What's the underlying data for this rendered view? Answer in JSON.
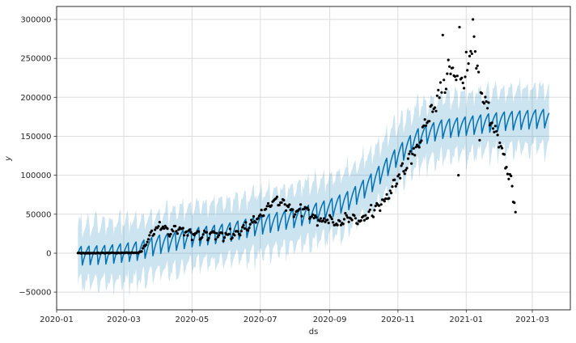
{
  "chart_data": {
    "type": "line",
    "title": "",
    "xlabel": "ds",
    "ylabel": "y",
    "grid": true,
    "legend": "none",
    "x_epoch": "2020-01-01",
    "xlim_days": [
      0,
      459
    ],
    "ylim": [
      -72700,
      316600
    ],
    "x_ticks": [
      {
        "label": "2020-01",
        "day": 0
      },
      {
        "label": "2020-03",
        "day": 60
      },
      {
        "label": "2020-05",
        "day": 121
      },
      {
        "label": "2020-07",
        "day": 182
      },
      {
        "label": "2020-09",
        "day": 244
      },
      {
        "label": "2020-11",
        "day": 305
      },
      {
        "label": "2021-01",
        "day": 366
      },
      {
        "label": "2021-03",
        "day": 425
      }
    ],
    "y_ticks": [
      {
        "label": "−50000",
        "value": -50000
      },
      {
        "label": "0",
        "value": 0
      },
      {
        "label": "50000",
        "value": 50000
      },
      {
        "label": "100000",
        "value": 100000
      },
      {
        "label": "150000",
        "value": 150000
      },
      {
        "label": "200000",
        "value": 200000
      },
      {
        "label": "250000",
        "value": 250000
      },
      {
        "label": "300000",
        "value": 300000
      }
    ],
    "colors": {
      "line": "#0072B2",
      "band": "#0072B2",
      "points": "#000000",
      "grid": "#dddddd",
      "spine": "#2b2b2b",
      "text": "#262626",
      "background": "#ffffff"
    },
    "series": [
      {
        "key": "observed",
        "name": "observed data points",
        "type": "scatter",
        "start_day": 19,
        "end_day": 410,
        "marker_radius": 1.6,
        "weekly_factor": 0.35,
        "keypoints": [
          [
            19,
            0
          ],
          [
            73,
            500
          ],
          [
            76,
            3000
          ],
          [
            79,
            10000
          ],
          [
            83,
            20000
          ],
          [
            88,
            31000
          ],
          [
            93,
            34000
          ],
          [
            98,
            30000
          ],
          [
            102,
            26000
          ],
          [
            107,
            31000
          ],
          [
            112,
            28000
          ],
          [
            117,
            25000
          ],
          [
            124,
            23000
          ],
          [
            132,
            24000
          ],
          [
            140,
            26000
          ],
          [
            148,
            23000
          ],
          [
            156,
            24000
          ],
          [
            163,
            27000
          ],
          [
            170,
            33000
          ],
          [
            177,
            42000
          ],
          [
            184,
            51000
          ],
          [
            191,
            62000
          ],
          [
            197,
            66000
          ],
          [
            203,
            63000
          ],
          [
            209,
            57000
          ],
          [
            215,
            53000
          ],
          [
            220,
            56000
          ],
          [
            226,
            50000
          ],
          [
            232,
            43000
          ],
          [
            239,
            40000
          ],
          [
            246,
            43000
          ],
          [
            251,
            38000
          ],
          [
            257,
            44000
          ],
          [
            263,
            46000
          ],
          [
            269,
            42000
          ],
          [
            275,
            47000
          ],
          [
            281,
            52000
          ],
          [
            287,
            58000
          ],
          [
            293,
            68000
          ],
          [
            299,
            80000
          ],
          [
            305,
            95000
          ],
          [
            311,
            110000
          ],
          [
            317,
            122000
          ],
          [
            323,
            140000
          ],
          [
            329,
            160000
          ],
          [
            335,
            185000
          ],
          [
            341,
            200000
          ],
          [
            347,
            215000
          ],
          [
            352,
            235000
          ],
          [
            358,
            225000
          ],
          [
            363,
            215000
          ],
          [
            368,
            240000
          ],
          [
            373,
            258000
          ],
          [
            377,
            225000
          ],
          [
            381,
            200000
          ],
          [
            385,
            185000
          ],
          [
            389,
            170000
          ],
          [
            393,
            152000
          ],
          [
            398,
            130000
          ],
          [
            402,
            110000
          ],
          [
            406,
            90000
          ],
          [
            410,
            55000
          ]
        ],
        "outliers": [
          [
            345,
            280000
          ],
          [
            350,
            248000
          ],
          [
            359,
            100000
          ],
          [
            360,
            290000
          ],
          [
            366,
            258000
          ],
          [
            371,
            256000
          ],
          [
            372,
            300000
          ],
          [
            373,
            278000
          ],
          [
            378,
            145000
          ]
        ],
        "noise_scale_keypoints": [
          [
            19,
            300
          ],
          [
            73,
            500
          ],
          [
            80,
            2000
          ],
          [
            91,
            3000
          ],
          [
            244,
            4500
          ],
          [
            300,
            6500
          ],
          [
            330,
            9000
          ],
          [
            340,
            13000
          ],
          [
            390,
            12000
          ],
          [
            397,
            7000
          ],
          [
            410,
            6000
          ]
        ]
      },
      {
        "key": "forecast",
        "name": "forecast yhat",
        "type": "line",
        "start_day": 19,
        "end_day": 440,
        "line_width": 1.5,
        "weekly_pattern": [
          9000,
          11000,
          -13000,
          -7000,
          -2000,
          2500,
          6000
        ],
        "trend_keypoints": [
          [
            19,
            -2500
          ],
          [
            45,
            -1000
          ],
          [
            60,
            1500
          ],
          [
            74,
            4000
          ],
          [
            91,
            12000
          ],
          [
            105,
            16000
          ],
          [
            121,
            21000
          ],
          [
            152,
            27000
          ],
          [
            182,
            37000
          ],
          [
            213,
            46000
          ],
          [
            244,
            58000
          ],
          [
            263,
            70000
          ],
          [
            283,
            93000
          ],
          [
            305,
            126000
          ],
          [
            324,
            150000
          ],
          [
            344,
            160000
          ],
          [
            366,
            164000
          ],
          [
            397,
            170000
          ],
          [
            440,
            174000
          ]
        ]
      },
      {
        "key": "band",
        "name": "uncertainty interval",
        "type": "band",
        "start_day": 19,
        "end_day": 440,
        "halfwidth": 34000,
        "spike_max": 13000,
        "opacity": 0.2
      }
    ]
  }
}
